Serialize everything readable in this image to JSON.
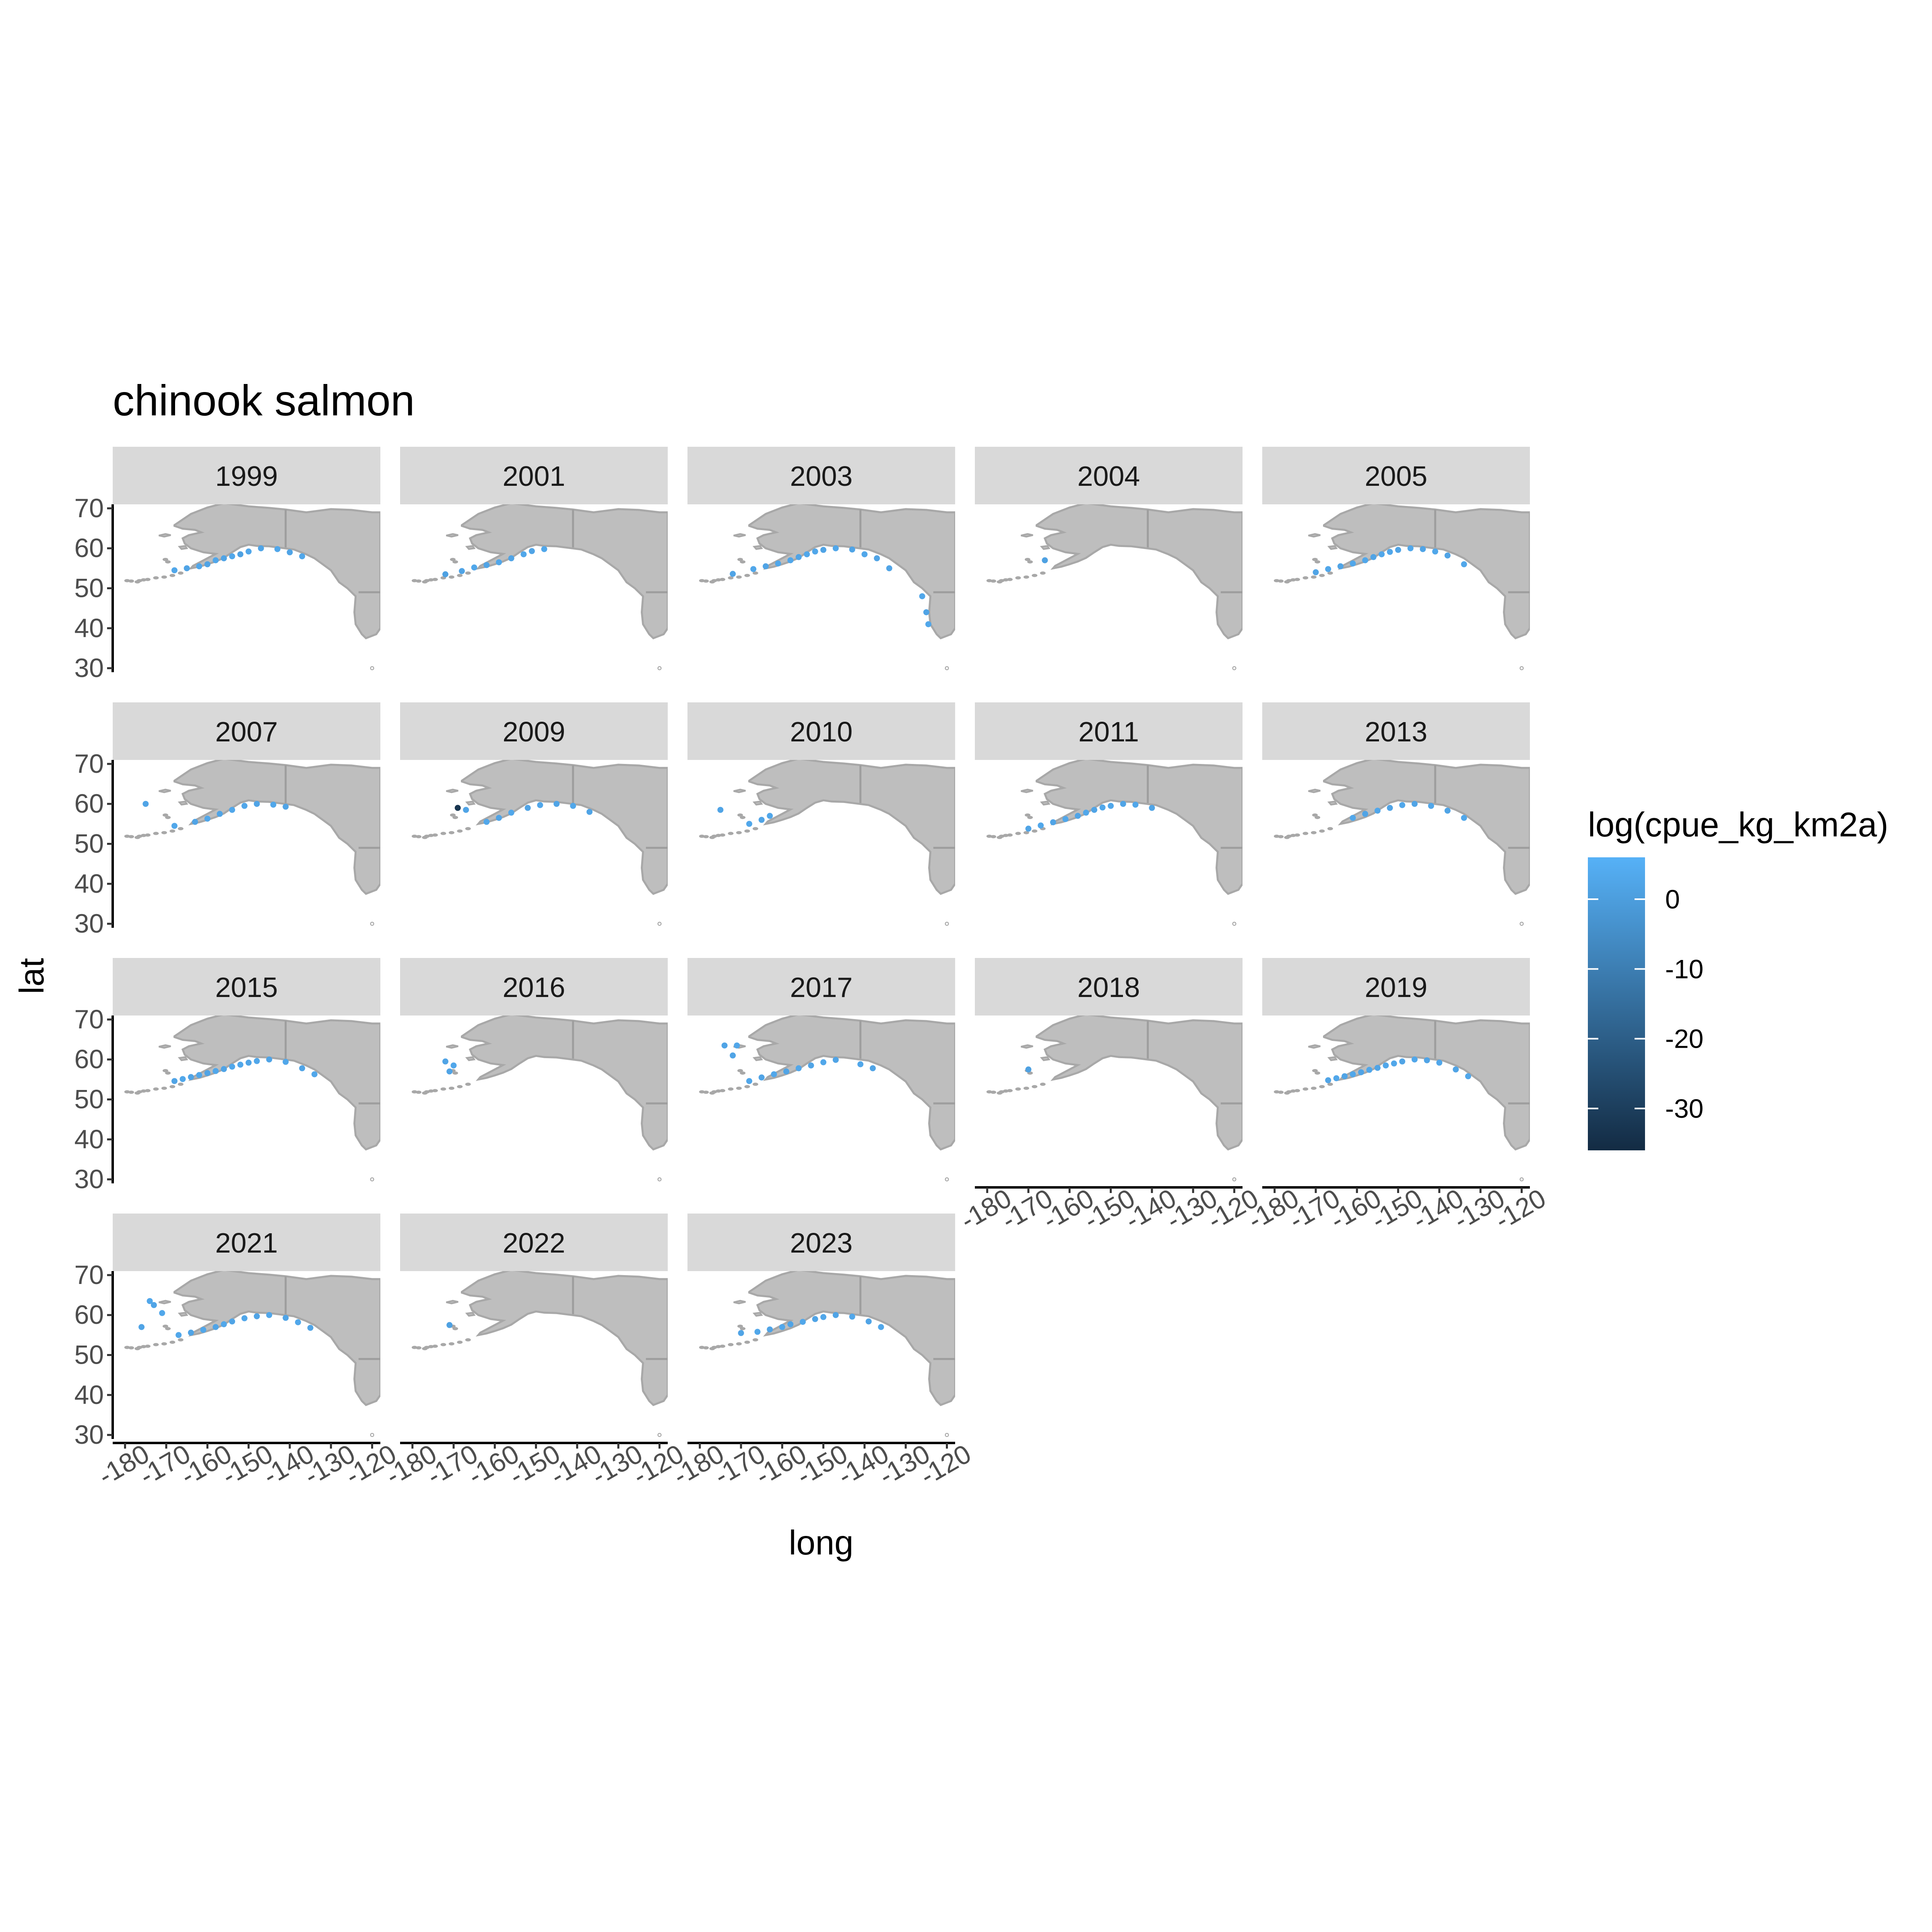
{
  "chart_data": {
    "type": "scatter",
    "title": "chinook salmon",
    "xlabel": "long",
    "ylabel": "lat",
    "xlim": [
      -183,
      -118
    ],
    "ylim": [
      29,
      71
    ],
    "x_ticks": [
      -180,
      -170,
      -160,
      -150,
      -140,
      -130,
      -120
    ],
    "y_ticks": [
      30,
      40,
      50,
      60,
      70
    ],
    "grid": false,
    "legend": {
      "title": "log(cpue_kg_km2a)",
      "position": "right",
      "type": "colorbar",
      "range": [
        -36,
        6
      ],
      "ticks": [
        0,
        -10,
        -20,
        -30
      ],
      "low_color": "#132B43",
      "high_color": "#56B1F7"
    },
    "colors": {
      "land": "#bebebe",
      "land_border": "#9e9e9e",
      "strip": "#d9d9d9"
    },
    "panels": [
      {
        "year": "1999",
        "points": [
          [
            -168,
            54.5,
            3
          ],
          [
            -165,
            55,
            2
          ],
          [
            -162,
            55.5,
            3
          ],
          [
            -160,
            56,
            2
          ],
          [
            -158,
            57,
            3
          ],
          [
            -156,
            57.5,
            2
          ],
          [
            -154,
            58,
            3
          ],
          [
            -152,
            58.5,
            1
          ],
          [
            -150,
            59.2,
            3
          ],
          [
            -147,
            60,
            2
          ],
          [
            -143,
            59.8,
            3
          ],
          [
            -140,
            59,
            2
          ],
          [
            -137,
            58,
            3
          ]
        ]
      },
      {
        "year": "2001",
        "points": [
          [
            -172,
            53.5,
            1
          ],
          [
            -168,
            54.3,
            2
          ],
          [
            -165,
            55.2,
            3
          ],
          [
            -162,
            55.8,
            2
          ],
          [
            -159,
            56.5,
            3
          ],
          [
            -156,
            57.5,
            2
          ],
          [
            -153,
            58.5,
            3
          ],
          [
            -151,
            59.3,
            2
          ],
          [
            -148,
            59.8,
            3
          ]
        ]
      },
      {
        "year": "2003",
        "points": [
          [
            -172,
            53.6,
            2
          ],
          [
            -167,
            54.8,
            3
          ],
          [
            -164,
            55.5,
            2
          ],
          [
            -161,
            56.2,
            3
          ],
          [
            -158,
            57,
            3
          ],
          [
            -156,
            57.8,
            2
          ],
          [
            -154,
            58.5,
            3
          ],
          [
            -152,
            59.2,
            3
          ],
          [
            -150,
            59.6,
            2
          ],
          [
            -147,
            60,
            3
          ],
          [
            -143,
            59.7,
            2
          ],
          [
            -140,
            58.5,
            3
          ],
          [
            -137,
            57.5,
            2
          ],
          [
            -134,
            55,
            2
          ],
          [
            -126,
            48,
            3
          ],
          [
            -125,
            44,
            2
          ],
          [
            -124.5,
            41,
            3
          ]
        ]
      },
      {
        "year": "2004",
        "points": [
          [
            -166,
            57,
            1
          ]
        ]
      },
      {
        "year": "2005",
        "points": [
          [
            -170,
            54,
            2
          ],
          [
            -167,
            54.8,
            3
          ],
          [
            -164,
            55.5,
            2
          ],
          [
            -161,
            56.2,
            3
          ],
          [
            -158,
            57,
            3
          ],
          [
            -156,
            57.8,
            2
          ],
          [
            -154,
            58.5,
            3
          ],
          [
            -152,
            59.1,
            3
          ],
          [
            -150,
            59.6,
            2
          ],
          [
            -147,
            60,
            3
          ],
          [
            -144,
            59.8,
            2
          ],
          [
            -141,
            59.2,
            3
          ],
          [
            -138,
            58.2,
            2
          ],
          [
            -134,
            56,
            3
          ]
        ]
      },
      {
        "year": "2007",
        "points": [
          [
            -175,
            60,
            2
          ],
          [
            -168,
            54.5,
            3
          ],
          [
            -163,
            55.5,
            2
          ],
          [
            -160,
            56.3,
            3
          ],
          [
            -157,
            57.5,
            2
          ],
          [
            -154,
            58.5,
            3
          ],
          [
            -151,
            59.5,
            3
          ],
          [
            -148,
            60,
            2
          ],
          [
            -144,
            59.8,
            3
          ],
          [
            -141,
            59.3,
            2
          ]
        ]
      },
      {
        "year": "2009",
        "points": [
          [
            -169,
            59,
            -33
          ],
          [
            -167,
            58.5,
            2
          ],
          [
            -162,
            55.5,
            3
          ],
          [
            -159,
            56.5,
            2
          ],
          [
            -156,
            57.8,
            3
          ],
          [
            -152,
            59,
            2
          ],
          [
            -149,
            59.7,
            3
          ],
          [
            -145,
            60,
            2
          ],
          [
            -141,
            59.5,
            3
          ],
          [
            -137,
            58,
            2
          ]
        ]
      },
      {
        "year": "2010",
        "points": [
          [
            -175,
            58.5,
            2
          ],
          [
            -168,
            55,
            3
          ],
          [
            -165,
            56,
            2
          ],
          [
            -163,
            57,
            3
          ]
        ]
      },
      {
        "year": "2011",
        "points": [
          [
            -170,
            53.8,
            2
          ],
          [
            -167,
            54.6,
            3
          ],
          [
            -164,
            55.4,
            2
          ],
          [
            -161,
            56.2,
            3
          ],
          [
            -158,
            57,
            2
          ],
          [
            -156,
            57.8,
            3
          ],
          [
            -154,
            58.5,
            2
          ],
          [
            -152,
            59.1,
            3
          ],
          [
            -150,
            59.5,
            3
          ],
          [
            -147,
            60,
            2
          ],
          [
            -144,
            59.8,
            3
          ],
          [
            -140,
            59,
            2
          ]
        ]
      },
      {
        "year": "2013",
        "points": [
          [
            -161,
            56.5,
            3
          ],
          [
            -158,
            57.5,
            2
          ],
          [
            -155,
            58.3,
            3
          ],
          [
            -152,
            59,
            2
          ],
          [
            -149,
            59.7,
            3
          ],
          [
            -146,
            60,
            2
          ],
          [
            -142,
            59.5,
            3
          ],
          [
            -138,
            58.3,
            2
          ],
          [
            -134,
            56.5,
            3
          ]
        ]
      },
      {
        "year": "2015",
        "points": [
          [
            -168,
            54.6,
            2
          ],
          [
            -166,
            55.1,
            3
          ],
          [
            -164,
            55.6,
            2
          ],
          [
            -162,
            56.1,
            3
          ],
          [
            -160,
            56.6,
            2
          ],
          [
            -158,
            57.1,
            3
          ],
          [
            -156,
            57.6,
            2
          ],
          [
            -154,
            58.2,
            3
          ],
          [
            -152,
            58.7,
            3
          ],
          [
            -150,
            59.2,
            2
          ],
          [
            -148,
            59.6,
            3
          ],
          [
            -145,
            60,
            2
          ],
          [
            -141,
            59.4,
            3
          ],
          [
            -137,
            57.8,
            2
          ],
          [
            -134,
            56.3,
            3
          ]
        ]
      },
      {
        "year": "2016",
        "points": [
          [
            -172,
            59.5,
            2
          ],
          [
            -170,
            58.5,
            3
          ],
          [
            -171,
            57,
            2
          ]
        ]
      },
      {
        "year": "2017",
        "points": [
          [
            -174,
            63.5,
            2
          ],
          [
            -171,
            63.5,
            3
          ],
          [
            -172,
            61,
            2
          ],
          [
            -168,
            54.6,
            3
          ],
          [
            -165,
            55.5,
            2
          ],
          [
            -162,
            56.3,
            3
          ],
          [
            -159,
            57,
            2
          ],
          [
            -156,
            57.8,
            3
          ],
          [
            -153,
            58.5,
            2
          ],
          [
            -150,
            59.3,
            3
          ],
          [
            -147,
            59.9,
            2
          ],
          [
            -141,
            58.8,
            3
          ],
          [
            -138,
            57.8,
            2
          ]
        ]
      },
      {
        "year": "2018",
        "points": [
          [
            -170,
            57.5,
            1
          ]
        ]
      },
      {
        "year": "2019",
        "points": [
          [
            -167,
            54.8,
            2
          ],
          [
            -165,
            55.3,
            3
          ],
          [
            -163,
            55.8,
            2
          ],
          [
            -161,
            56.3,
            3
          ],
          [
            -159,
            56.8,
            2
          ],
          [
            -157,
            57.4,
            3
          ],
          [
            -155,
            57.9,
            2
          ],
          [
            -153,
            58.5,
            3
          ],
          [
            -151,
            59,
            3
          ],
          [
            -149,
            59.5,
            2
          ],
          [
            -146,
            60,
            3
          ],
          [
            -143,
            59.8,
            2
          ],
          [
            -140,
            59.2,
            3
          ],
          [
            -136,
            57.5,
            2
          ],
          [
            -133,
            55.8,
            3
          ]
        ]
      },
      {
        "year": "2021",
        "points": [
          [
            -174,
            63.5,
            3
          ],
          [
            -173,
            62.5,
            2
          ],
          [
            -171,
            60.5,
            3
          ],
          [
            -176,
            57,
            2
          ],
          [
            -167,
            55,
            3
          ],
          [
            -164,
            55.6,
            2
          ],
          [
            -161,
            56.3,
            3
          ],
          [
            -158,
            57,
            2
          ],
          [
            -156,
            57.7,
            3
          ],
          [
            -154,
            58.4,
            2
          ],
          [
            -151,
            59.2,
            3
          ],
          [
            -148,
            59.7,
            2
          ],
          [
            -145,
            60,
            3
          ],
          [
            -141,
            59.3,
            2
          ],
          [
            -138,
            58.2,
            3
          ],
          [
            -135,
            56.8,
            2
          ]
        ]
      },
      {
        "year": "2022",
        "points": [
          [
            -171,
            57.5,
            1
          ]
        ]
      },
      {
        "year": "2023",
        "points": [
          [
            -170,
            55.5,
            2
          ],
          [
            -166,
            55.8,
            3
          ],
          [
            -163,
            56.4,
            2
          ],
          [
            -160,
            57,
            3
          ],
          [
            -158,
            57.7,
            2
          ],
          [
            -155,
            58.3,
            3
          ],
          [
            -152,
            59,
            2
          ],
          [
            -150,
            59.5,
            3
          ],
          [
            -147,
            60,
            2
          ],
          [
            -143,
            59.6,
            3
          ],
          [
            -139,
            58.4,
            2
          ],
          [
            -136,
            57,
            3
          ]
        ]
      }
    ]
  }
}
